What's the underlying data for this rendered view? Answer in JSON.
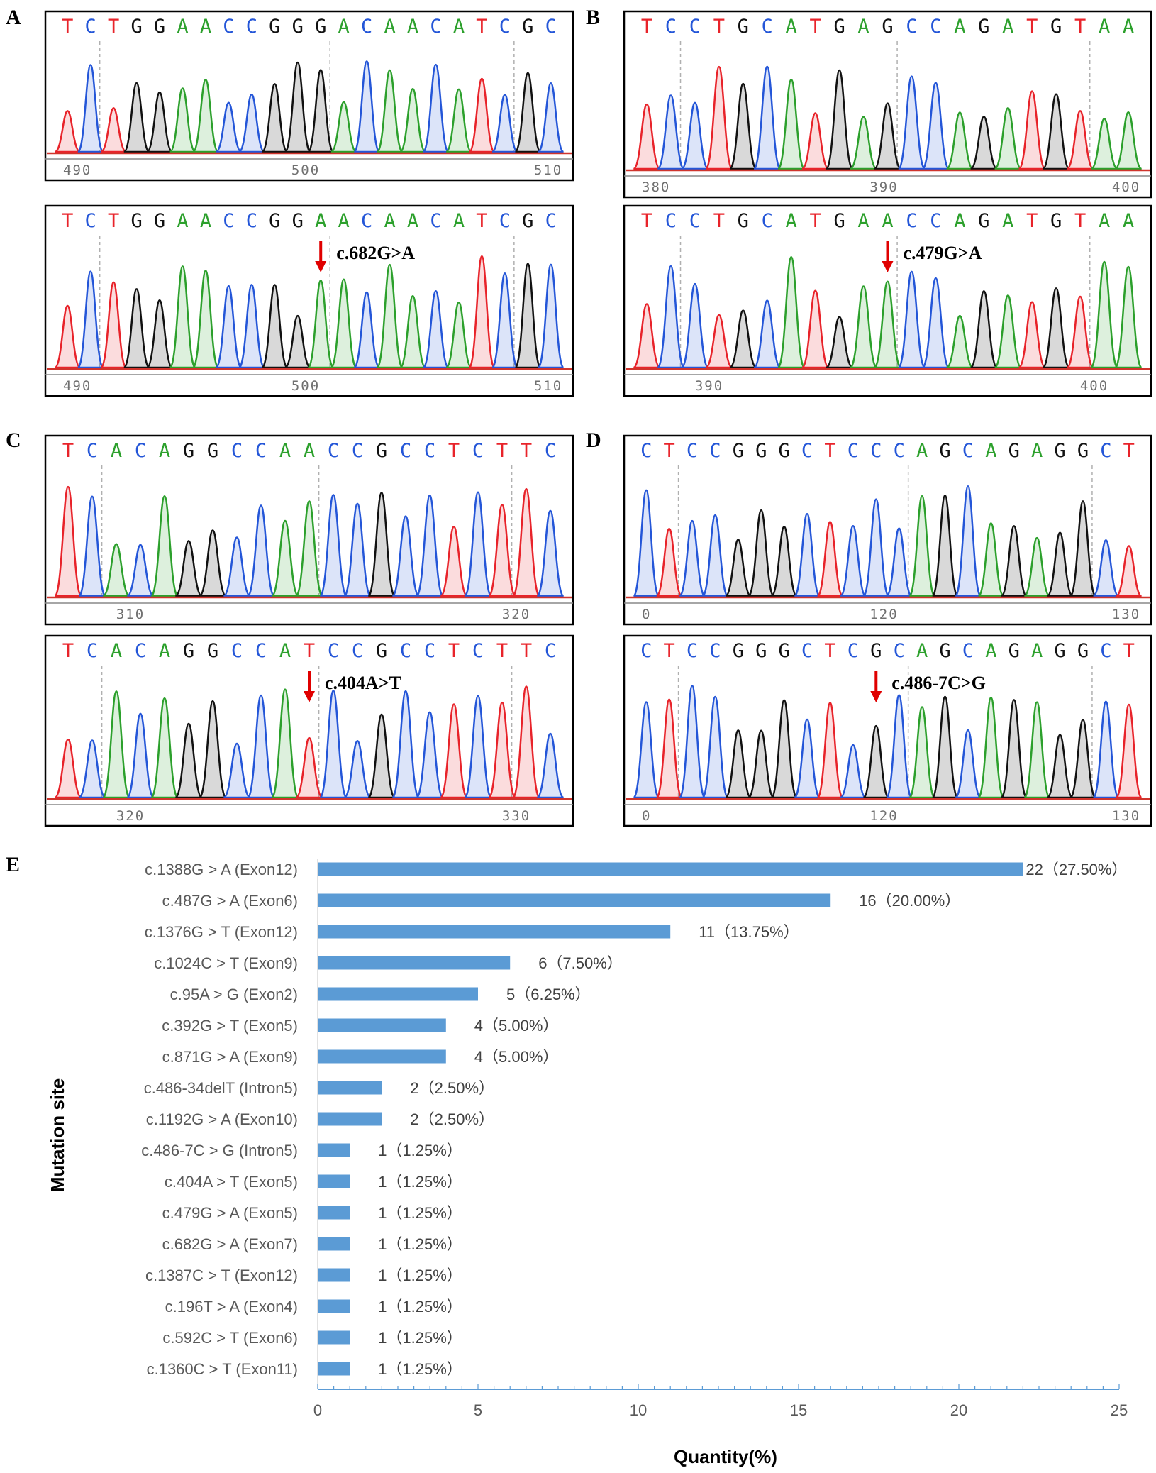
{
  "colors": {
    "A": "#2ca02c",
    "C": "#2456d8",
    "G": "#111111",
    "T": "#e8232a",
    "arrow": "#e00000",
    "bar": "#5b9bd5"
  },
  "panels": [
    {
      "id": "A",
      "label": "A",
      "seqTop": "TCTGGAACCGGGACAACATCGC",
      "seqBot": "TCTGGAACCGGAACAACATCGC",
      "ticksTop": [
        "490",
        "500",
        "510"
      ],
      "ticksBot": [
        "490",
        "500",
        "510"
      ],
      "mutation": "c.682G>A",
      "mutIndex": 11
    },
    {
      "id": "B",
      "label": "B",
      "seqTop": "TCCTGCATGAGCCAGATGTAA",
      "seqBot": "TCCTGCATGAACCAGATGTAA",
      "ticksTop": [
        "380",
        "390",
        "400"
      ],
      "ticksBot": [
        "390",
        "400"
      ],
      "mutation": "c.479G>A",
      "mutIndex": 10
    },
    {
      "id": "C",
      "label": "C",
      "seqTop": "TCACAGGCCAACCGCCTCTTC",
      "seqBot": "TCACAGGCCATCCGCCTCTTC",
      "ticksTop": [
        "310",
        "320"
      ],
      "ticksBot": [
        "320",
        "330"
      ],
      "mutation": "c.404A>T",
      "mutIndex": 10
    },
    {
      "id": "D",
      "label": "D",
      "seqTop": "CTCCGGGCTCCCAGCAGAGGCT",
      "seqBot": "CTCCGGGCTCGCAGCAGAGGCT",
      "ticksTop": [
        "0",
        "120",
        "130"
      ],
      "ticksBot": [
        "0",
        "120",
        "130"
      ],
      "mutation": "c.486-7C>G",
      "mutIndex": 10
    }
  ],
  "chart_data": {
    "type": "bar",
    "orientation": "horizontal",
    "panel_label": "E",
    "categories": [
      "c.1388G > A  (Exon12)",
      "c.487G > A  (Exon6)",
      "c.1376G > T  (Exon12)",
      "c.1024C > T  (Exon9)",
      "c.95A > G  (Exon2)",
      "c.392G > T  (Exon5)",
      "c.871G > A  (Exon9)",
      "c.486-34delT  (Intron5)",
      "c.1192G > A  (Exon10)",
      "c.486-7C > G  (Intron5)",
      "c.404A > T  (Exon5)",
      "c.479G > A  (Exon5)",
      "c.682G > A  (Exon7)",
      "c.1387C > T  (Exon12)",
      "c.196T > A  (Exon4)",
      "c.592C > T  (Exon6)",
      "c.1360C > T  (Exon11)"
    ],
    "values": [
      22,
      16,
      11,
      6,
      5,
      4,
      4,
      2,
      2,
      1,
      1,
      1,
      1,
      1,
      1,
      1,
      1
    ],
    "value_labels": [
      "22（27.50%）",
      "16（20.00%）",
      "11（13.75%）",
      "6（7.50%）",
      "5（6.25%）",
      "4（5.00%）",
      "4（5.00%）",
      "2（2.50%）",
      "2（2.50%）",
      "1（1.25%）",
      "1（1.25%）",
      "1（1.25%）",
      "1（1.25%）",
      "1（1.25%）",
      "1（1.25%）",
      "1（1.25%）",
      "1（1.25%）"
    ],
    "xlabel": "Quantity(%)",
    "ylabel": "Mutation site",
    "xlim": [
      0,
      25
    ],
    "xticks": [
      "0",
      "5",
      "10",
      "15",
      "20",
      "25"
    ]
  }
}
